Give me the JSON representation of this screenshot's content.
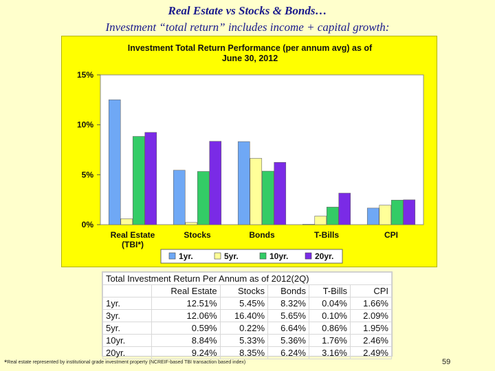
{
  "slide": {
    "title": "Real Estate vs Stocks & Bonds…",
    "subtitle": "Investment “total return” includes income + capital growth:",
    "footnote_star": "*",
    "footnote_text": "Real estate represented by institutional grade investment property (NCREIF-based TBI transaction based index)",
    "page_number": "59"
  },
  "chart_data": {
    "type": "bar",
    "title_line1": "Investment Total Return Performance (per annum avg) as of",
    "title_line2": "June 30, 2012",
    "categories": [
      "Real Estate",
      "Stocks",
      "Bonds",
      "T-Bills",
      "CPI"
    ],
    "category_sublabels": [
      "(TBI*)",
      "",
      "",
      "",
      ""
    ],
    "series": [
      {
        "name": "1yr.",
        "values": [
          12.51,
          5.45,
          8.32,
          0.04,
          1.66
        ],
        "color": "#6fa8f5"
      },
      {
        "name": "5yr.",
        "values": [
          0.59,
          0.22,
          6.64,
          0.86,
          1.95
        ],
        "color": "#ffff99"
      },
      {
        "name": "10yr.",
        "values": [
          8.84,
          5.33,
          5.36,
          1.76,
          2.46
        ],
        "color": "#33cc66"
      },
      {
        "name": "20yr.",
        "values": [
          9.24,
          8.35,
          6.24,
          3.16,
          2.49
        ],
        "color": "#7a2be6"
      }
    ],
    "ylim": [
      0,
      15
    ],
    "yticks": [
      0,
      5,
      10,
      15
    ],
    "ytick_labels": [
      "0%",
      "5%",
      "10%",
      "15%"
    ],
    "legend_position": "bottom"
  },
  "table": {
    "title": "Total Investment Return Per Annum as of 2012(2Q)",
    "columns": [
      "Real Estate",
      "Stocks",
      "Bonds",
      "T-Bills",
      "CPI"
    ],
    "rows": [
      {
        "label": "1yr.",
        "cells": [
          "12.51%",
          "5.45%",
          "8.32%",
          "0.04%",
          "1.66%"
        ]
      },
      {
        "label": "3yr.",
        "cells": [
          "12.06%",
          "16.40%",
          "5.65%",
          "0.10%",
          "2.09%"
        ]
      },
      {
        "label": "5yr.",
        "cells": [
          "0.59%",
          "0.22%",
          "6.64%",
          "0.86%",
          "1.95%"
        ]
      },
      {
        "label": "10yr.",
        "cells": [
          "8.84%",
          "5.33%",
          "5.36%",
          "1.76%",
          "2.46%"
        ]
      },
      {
        "label": "20yr.",
        "cells": [
          "9.24%",
          "8.35%",
          "6.24%",
          "3.16%",
          "2.49%"
        ]
      }
    ]
  }
}
